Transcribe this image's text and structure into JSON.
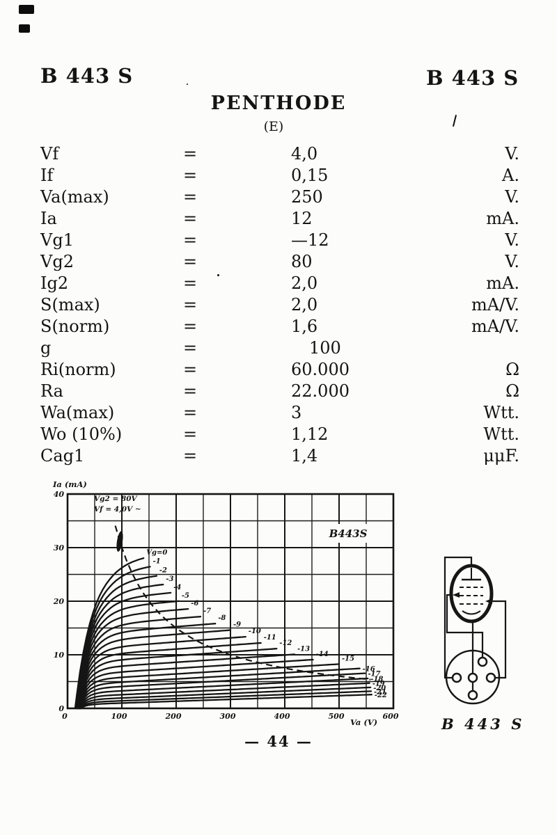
{
  "page": {
    "header_left": "B 443 S",
    "header_right": "B 443 S",
    "title": "PENTHODE",
    "subtitle": "(E)",
    "page_number": "— 44 —"
  },
  "specs": {
    "equals": "=",
    "rows": [
      {
        "name": "Vf",
        "value": "4,0",
        "unit": "V."
      },
      {
        "name": "If",
        "value": "0,15",
        "unit": "A."
      },
      {
        "name": "Va(max)",
        "value": "250",
        "unit": "V."
      },
      {
        "name": "Ia",
        "value": "12",
        "unit": "mA."
      },
      {
        "name": "Vg1",
        "value": "—12",
        "unit": "V."
      },
      {
        "name": "Vg2",
        "value": "80",
        "unit": "V."
      },
      {
        "name": "Ig2",
        "value": "2,0",
        "unit": "mA."
      },
      {
        "name": "S(max)",
        "value": "2,0",
        "unit": "mA/V."
      },
      {
        "name": "S(norm)",
        "value": "1,6",
        "unit": "mA/V."
      },
      {
        "name": "g",
        "value": "100",
        "unit": "",
        "indent": true
      },
      {
        "name": "Ri(norm)",
        "value": "60.000",
        "unit": "Ω"
      },
      {
        "name": "Ra",
        "value": "22.000",
        "unit": "Ω"
      },
      {
        "name": "Wa(max)",
        "value": "3",
        "unit": "Wtt."
      },
      {
        "name": "Wo (10%)",
        "value": "1,12",
        "unit": "Wtt."
      },
      {
        "name": "Cag1",
        "value": "1,4",
        "unit": "μμF."
      }
    ]
  },
  "chart_data": {
    "type": "line",
    "title_box": "B443S",
    "xlabel": "Va (V)",
    "ylabel": "Ia (mA)",
    "xlim": [
      0,
      600
    ],
    "ylim": [
      0,
      40
    ],
    "x_ticks": [
      0,
      100,
      200,
      300,
      400,
      500,
      600
    ],
    "y_ticks": [
      0,
      10,
      20,
      30,
      40
    ],
    "grid_step_x": 50,
    "grid_step_y": 5,
    "grid": true,
    "annotations": [
      "Vg2 = 80V",
      "Vf = 4,0V ~"
    ],
    "power_curve": {
      "wa_watts": 3,
      "va_range": [
        88,
        558
      ],
      "style": "dashed"
    },
    "curves": [
      {
        "vg": 0,
        "label": "Vg=0",
        "i_sat": 28.0,
        "x_end": 140
      },
      {
        "vg": -1,
        "label": "-1",
        "i_sat": 26.0,
        "x_end": 152
      },
      {
        "vg": -2,
        "label": "-2",
        "i_sat": 24.0,
        "x_end": 164
      },
      {
        "vg": -3,
        "label": "-3",
        "i_sat": 22.2,
        "x_end": 176
      },
      {
        "vg": -4,
        "label": "-4",
        "i_sat": 20.5,
        "x_end": 190
      },
      {
        "vg": -5,
        "label": "-5",
        "i_sat": 18.8,
        "x_end": 205
      },
      {
        "vg": -6,
        "label": "-6",
        "i_sat": 17.2,
        "x_end": 222
      },
      {
        "vg": -7,
        "label": "-7",
        "i_sat": 15.6,
        "x_end": 245
      },
      {
        "vg": -8,
        "label": "-8",
        "i_sat": 14.1,
        "x_end": 272
      },
      {
        "vg": -9,
        "label": "-9",
        "i_sat": 12.7,
        "x_end": 300
      },
      {
        "vg": -10,
        "label": "-10",
        "i_sat": 11.3,
        "x_end": 328
      },
      {
        "vg": -11,
        "label": "-11",
        "i_sat": 10.0,
        "x_end": 356
      },
      {
        "vg": -12,
        "label": "-12",
        "i_sat": 8.8,
        "x_end": 385
      },
      {
        "vg": -13,
        "label": "-13",
        "i_sat": 7.6,
        "x_end": 418
      },
      {
        "vg": -14,
        "label": "-14",
        "i_sat": 6.5,
        "x_end": 452
      },
      {
        "vg": -15,
        "label": "-15",
        "i_sat": 5.5,
        "x_end": 500
      },
      {
        "vg": -16,
        "label": "-16",
        "i_sat": 4.6,
        "x_end": 538
      },
      {
        "vg": -17,
        "label": "-17",
        "i_sat": 3.8,
        "x_end": 548
      },
      {
        "vg": -18,
        "label": "-18",
        "i_sat": 3.0,
        "x_end": 553
      },
      {
        "vg": -19,
        "label": "-19",
        "i_sat": 2.3,
        "x_end": 556
      },
      {
        "vg": -20,
        "label": "-20",
        "i_sat": 1.7,
        "x_end": 558
      },
      {
        "vg": -21,
        "label": "-21",
        "i_sat": 1.2,
        "x_end": 559
      },
      {
        "vg": -22,
        "label": "-22",
        "i_sat": 0.8,
        "x_end": 560
      }
    ]
  },
  "pinout": {
    "label": "B 443 S"
  }
}
